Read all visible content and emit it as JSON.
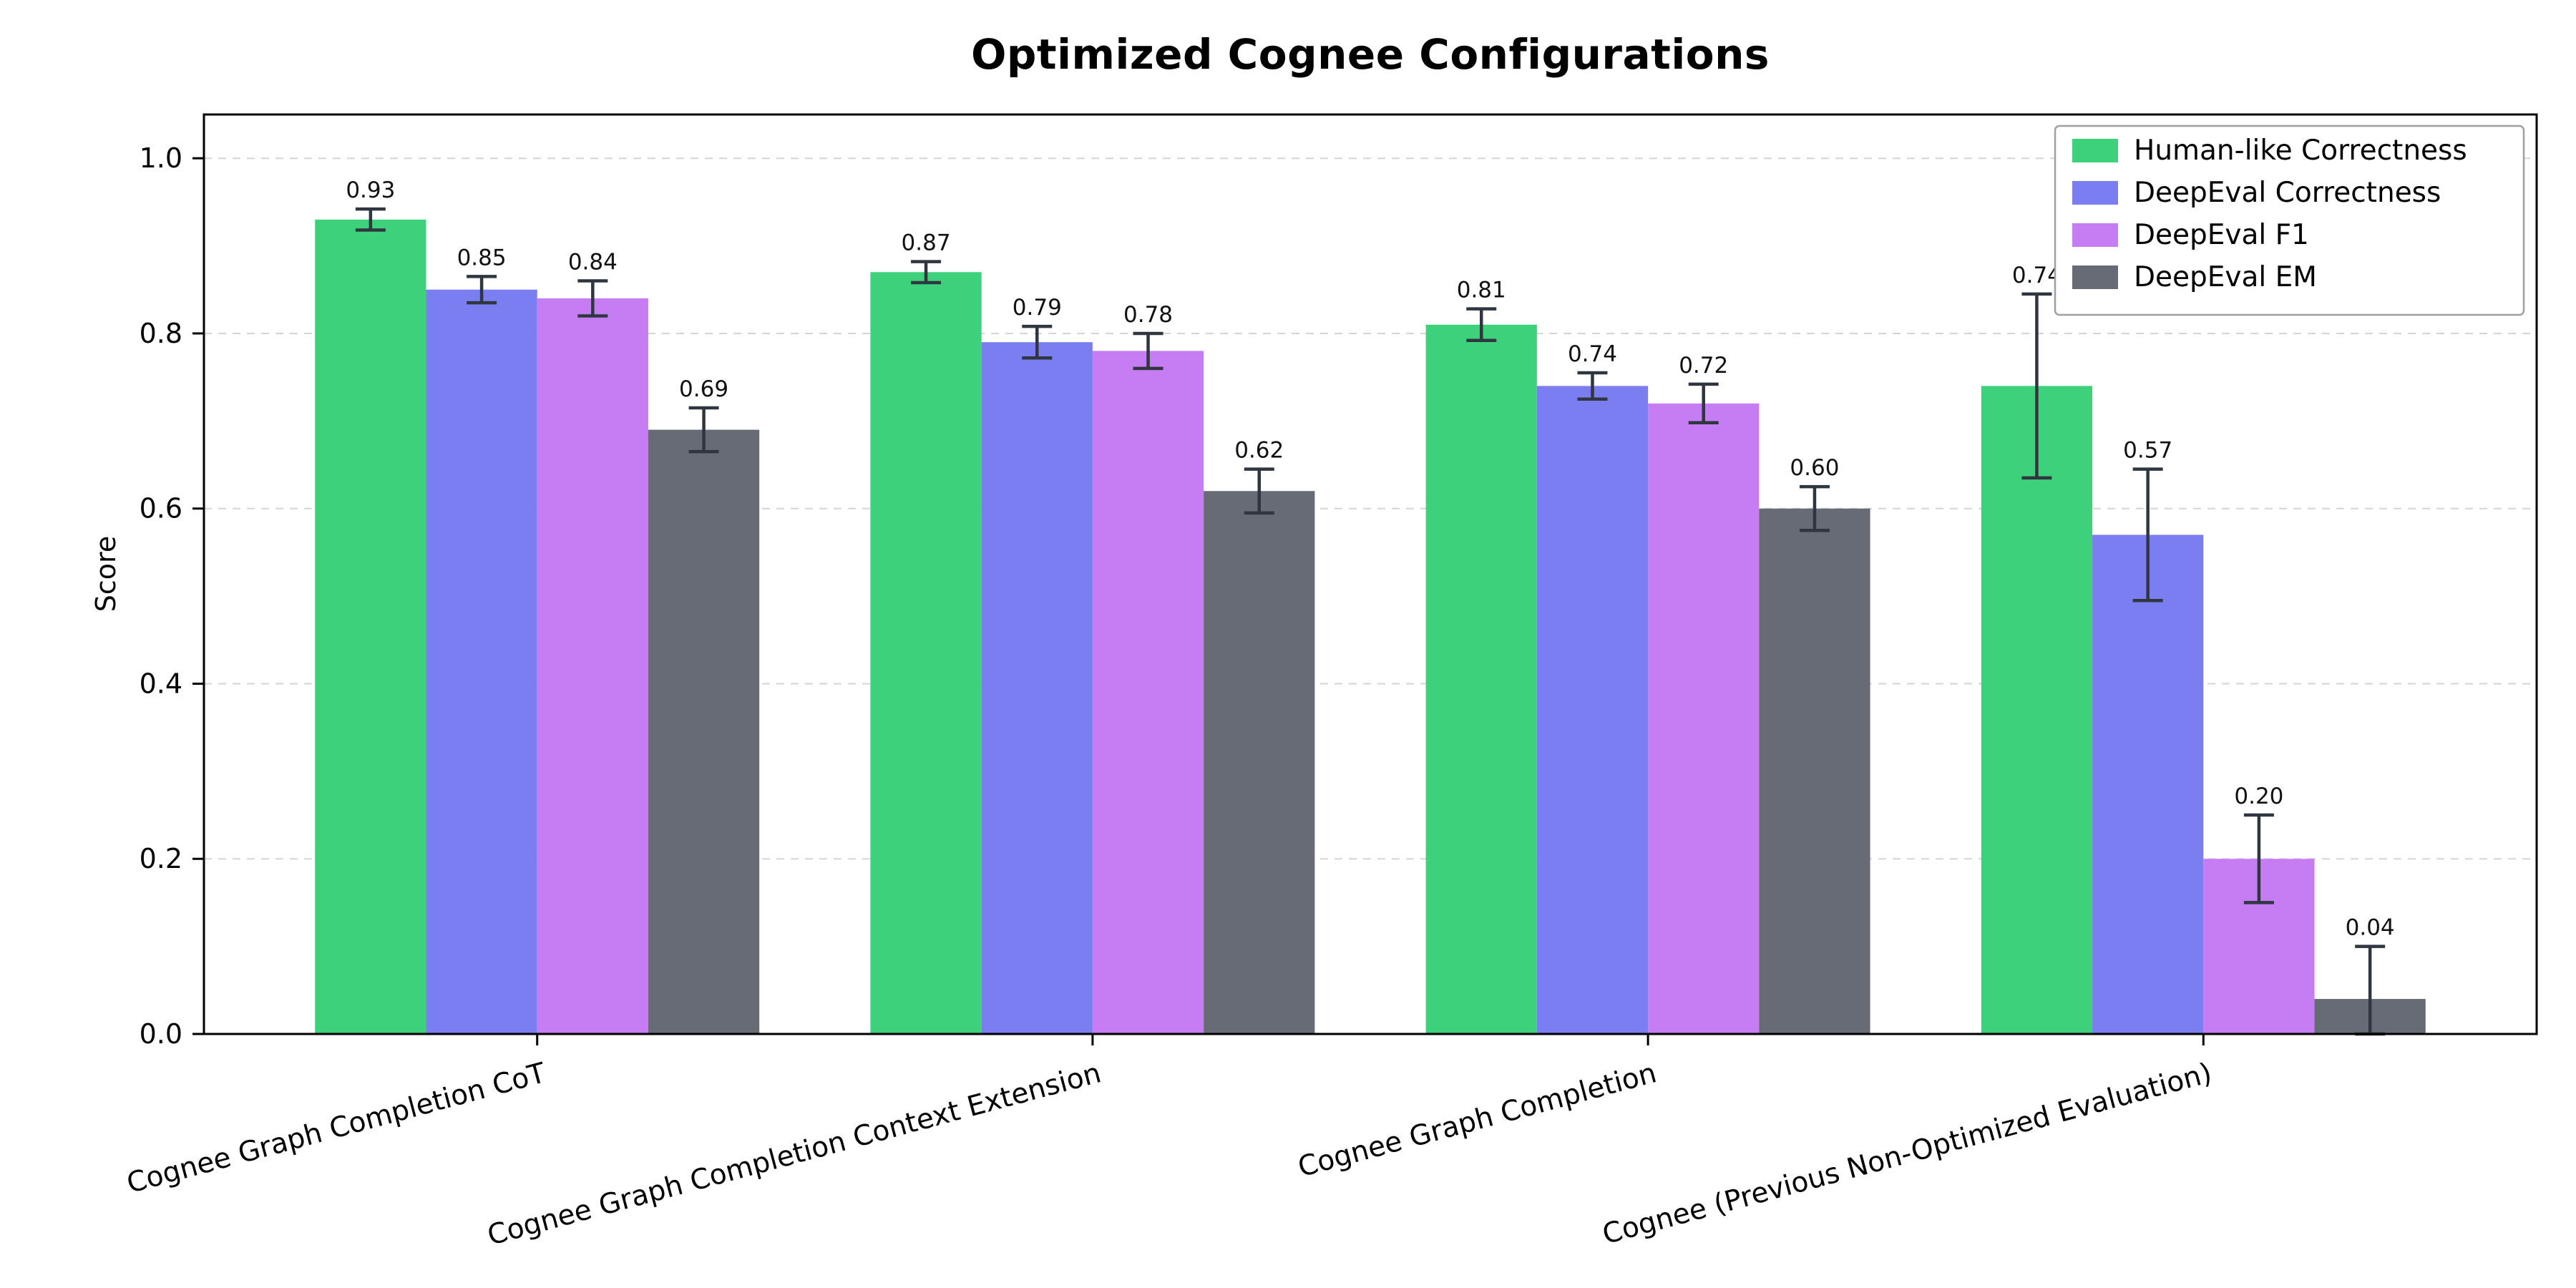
{
  "chart_data": {
    "type": "bar",
    "title": "Optimized Cognee Configurations",
    "xlabel": "",
    "ylabel": "Score",
    "ylim": [
      0,
      1.05
    ],
    "yticks": [
      0.0,
      0.2,
      0.4,
      0.6,
      0.8,
      1.0
    ],
    "grid": "horizontal-dashed",
    "legend_position": "upper-right",
    "bar_value_labels": true,
    "categories": [
      "Cognee Graph Completion CoT",
      "Cognee Graph Completion Context Extension",
      "Cognee Graph Completion",
      "Cognee (Previous Non-Optimized Evaluation)"
    ],
    "series": [
      {
        "name": "Human-like Correctness",
        "color": "#3ed17c",
        "values": [
          0.93,
          0.87,
          0.81,
          0.74
        ],
        "errors": [
          0.012,
          0.012,
          0.018,
          0.105
        ]
      },
      {
        "name": "DeepEval Correctness",
        "color": "#7b7ef0",
        "values": [
          0.85,
          0.79,
          0.74,
          0.57
        ],
        "errors": [
          0.015,
          0.018,
          0.015,
          0.075
        ]
      },
      {
        "name": "DeepEval F1",
        "color": "#c67cf2",
        "values": [
          0.84,
          0.78,
          0.72,
          0.2
        ],
        "errors": [
          0.02,
          0.02,
          0.022,
          0.05
        ]
      },
      {
        "name": "DeepEval EM",
        "color": "#666b76",
        "values": [
          0.69,
          0.62,
          0.6,
          0.04
        ],
        "errors": [
          0.025,
          0.025,
          0.025,
          0.06
        ]
      }
    ],
    "style": {
      "grid_color": "#d5d5d5",
      "frame_color": "#000000",
      "error_bar_color": "#2f3640",
      "label_color": "#111111"
    }
  }
}
